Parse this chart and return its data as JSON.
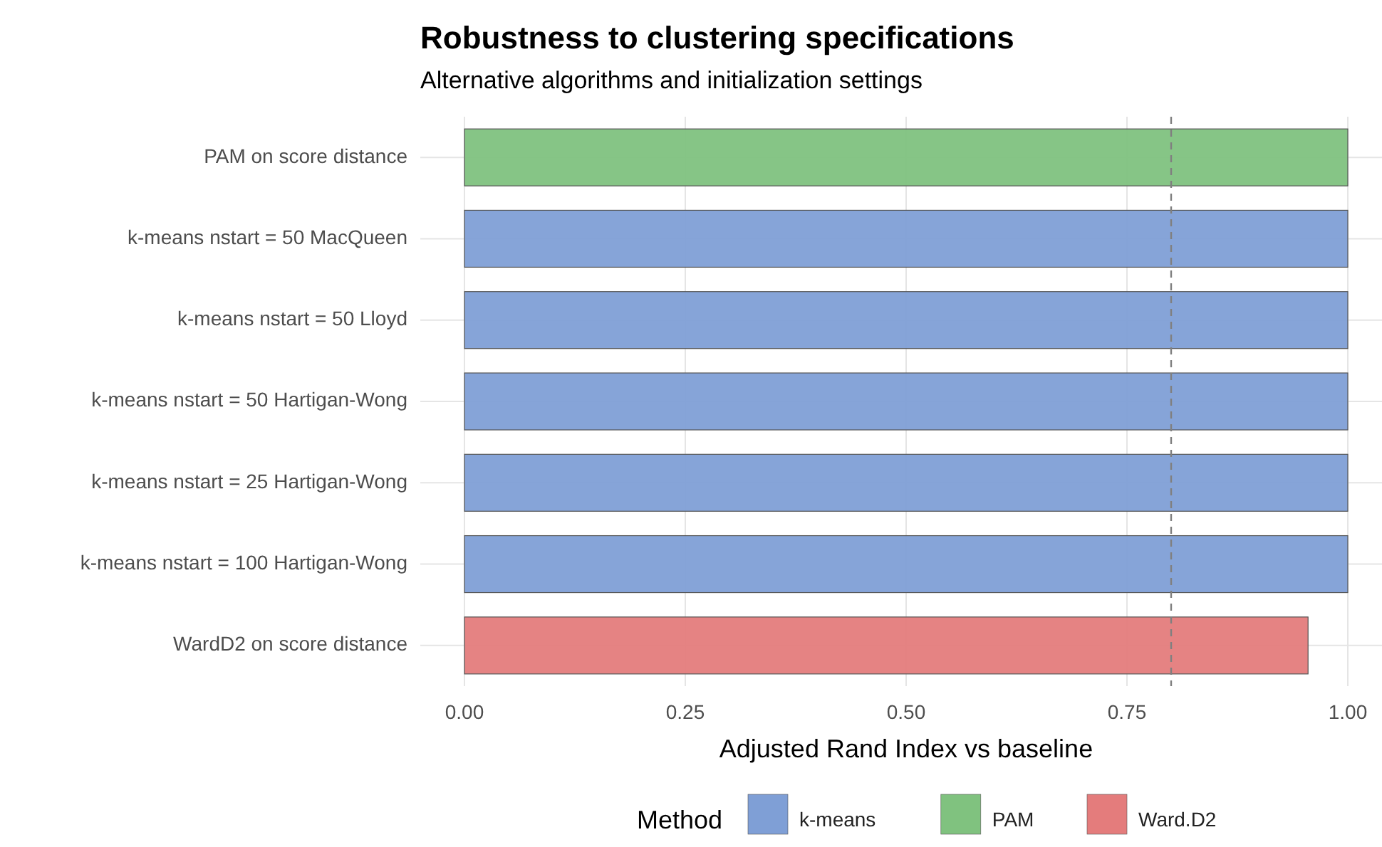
{
  "chart_data": {
    "type": "bar",
    "orientation": "horizontal",
    "stacked": true,
    "title": "Robustness to clustering specifications",
    "subtitle": "Alternative algorithms and initialization settings",
    "xlabel": "Adjusted Rand Index vs baseline",
    "legend_title": "Method",
    "categories": [
      "PAM on score distance",
      "k-means nstart = 50 MacQueen",
      "k-means nstart = 50 Lloyd",
      "k-means nstart = 50 Hartigan-Wong",
      "k-means nstart = 25 Hartigan-Wong",
      "k-means nstart = 100 Hartigan-Wong",
      "WardD2 on score distance"
    ],
    "series": [
      {
        "name": "k-means",
        "color": "#7f9fd6",
        "values": [
          null,
          1,
          1,
          1,
          1,
          1,
          null
        ]
      },
      {
        "name": "PAM",
        "color": "#80c27f",
        "values": [
          1,
          null,
          null,
          null,
          null,
          null,
          null
        ]
      },
      {
        "name": "Ward.D2",
        "color": "#e47c7c",
        "values": [
          null,
          null,
          null,
          null,
          null,
          null,
          0.955
        ]
      }
    ],
    "xlim": [
      -0.05,
      1.05
    ],
    "xticks": [
      {
        "value": 0,
        "label": "0.00"
      },
      {
        "value": 0.25,
        "label": "0.25"
      },
      {
        "value": 0.5,
        "label": "0.50"
      },
      {
        "value": 0.75,
        "label": "0.75"
      },
      {
        "value": 1,
        "label": "1.00"
      }
    ],
    "ref_lines": [
      {
        "axis": "x",
        "value": 0.8,
        "color": "#808080",
        "line_style": "dashed"
      }
    ],
    "grid": true,
    "legend": "bottom"
  }
}
